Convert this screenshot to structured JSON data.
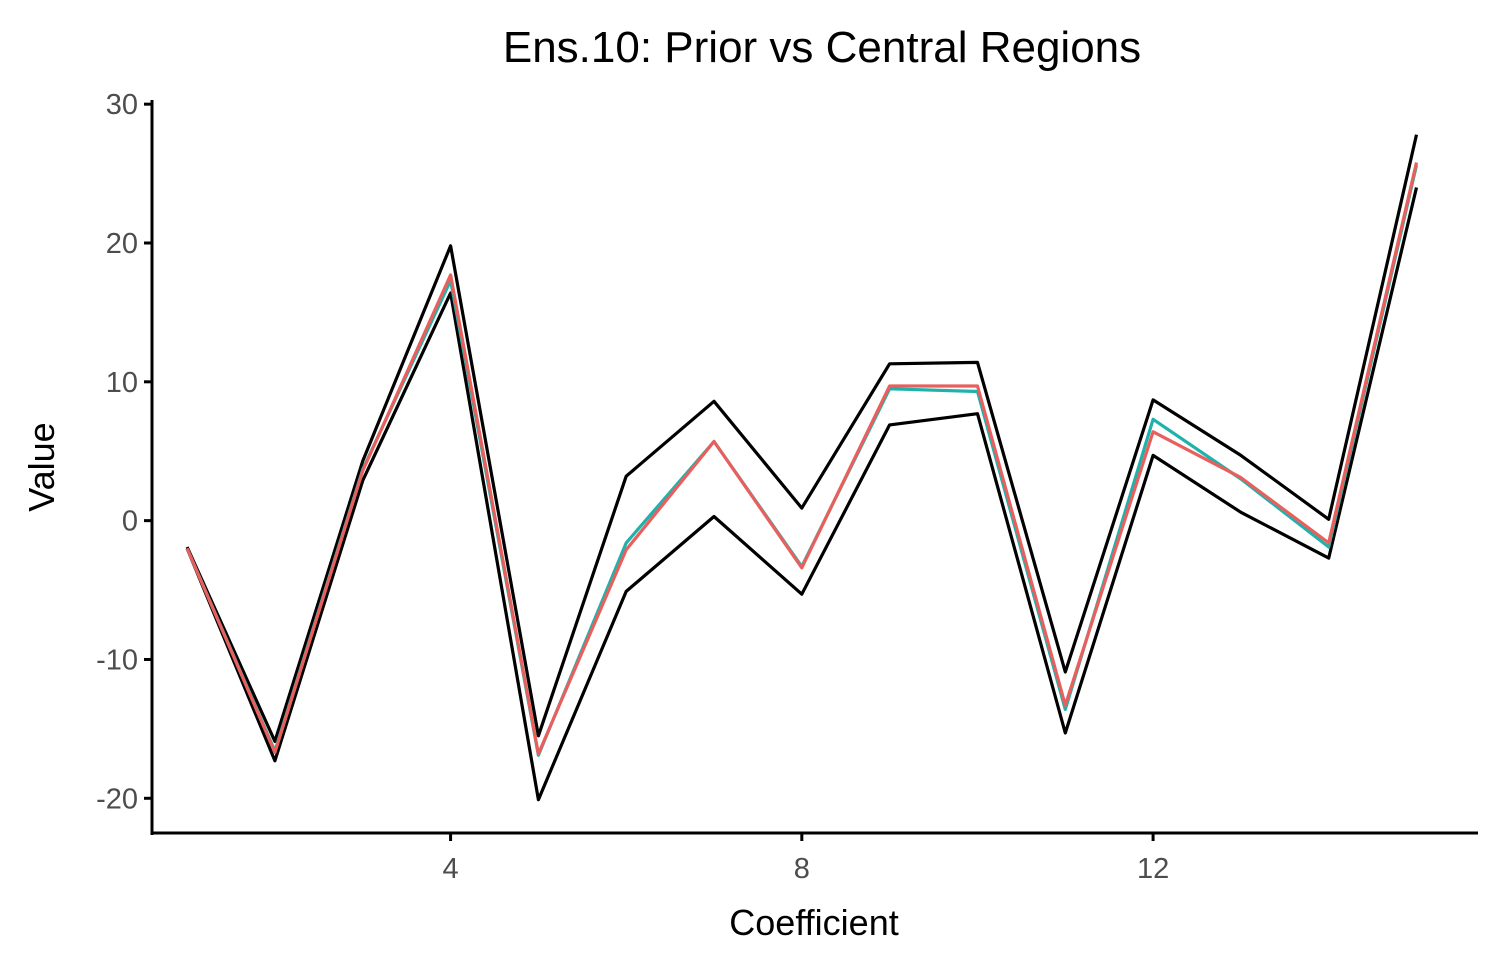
{
  "chart_data": {
    "type": "line",
    "title": "Ens.10: Prior vs Central Regions",
    "xlabel": "Coefficient",
    "ylabel": "Value",
    "xlim": [
      0.6,
      15.7
    ],
    "ylim": [
      -22.5,
      30.3
    ],
    "xticks": [
      4,
      8,
      12
    ],
    "yticks": [
      -20,
      -10,
      0,
      10,
      20,
      30
    ],
    "x": [
      1,
      2,
      3,
      4,
      5,
      6,
      7,
      8,
      9,
      10,
      11,
      12,
      13,
      14,
      15
    ],
    "grid": false,
    "legend": "none",
    "series": [
      {
        "color": "#000000",
        "values": [
          -1.9,
          -15.9,
          4.3,
          19.8,
          -15.5,
          3.2,
          8.6,
          0.9,
          11.3,
          11.4,
          -10.9,
          8.7,
          4.7,
          0.1,
          27.8
        ]
      },
      {
        "color": "#000000",
        "values": [
          -2.0,
          -17.3,
          2.9,
          16.4,
          -20.1,
          -5.1,
          0.3,
          -5.3,
          6.9,
          7.7,
          -15.3,
          4.7,
          0.6,
          -2.7,
          24.0
        ]
      },
      {
        "color": "#20b2aa",
        "values": [
          -2.0,
          -16.6,
          3.7,
          17.3,
          -16.9,
          -1.6,
          5.7,
          -3.3,
          9.5,
          9.3,
          -13.6,
          7.3,
          3.0,
          -1.9,
          25.6
        ]
      },
      {
        "color": "#e8605e",
        "values": [
          -2.0,
          -16.7,
          3.6,
          17.7,
          -16.8,
          -2.1,
          5.7,
          -3.4,
          9.7,
          9.7,
          -13.3,
          6.4,
          3.1,
          -1.6,
          25.8
        ]
      }
    ]
  }
}
